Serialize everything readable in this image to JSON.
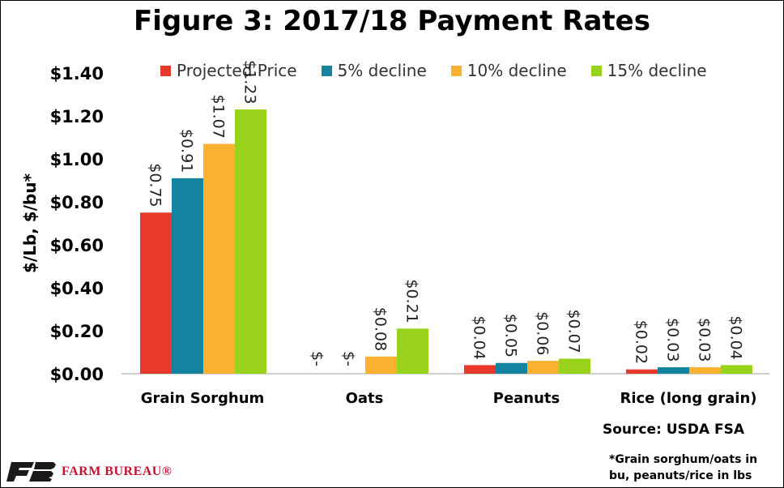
{
  "chart_data": {
    "type": "bar",
    "title": "Figure 3: 2017/18 Payment Rates",
    "ylabel": "$/Lb, $/bu*",
    "xlabel": "",
    "ylim": [
      0,
      1.4
    ],
    "yticks": [
      0,
      0.2,
      0.4,
      0.6,
      0.8,
      1.0,
      1.2,
      1.4
    ],
    "ytick_labels": [
      "$0.00",
      "$0.20",
      "$0.40",
      "$0.60",
      "$0.80",
      "$1.00",
      "$1.20",
      "$1.40"
    ],
    "categories": [
      "Grain Sorghum",
      "Oats",
      "Peanuts",
      "Rice (long grain)"
    ],
    "series": [
      {
        "name": "Projected Price",
        "color": "#e8392c",
        "values": [
          0.75,
          0,
          0.04,
          0.02
        ],
        "labels": [
          "$0.75",
          "$-",
          "$0.04",
          "$0.02"
        ]
      },
      {
        "name": "5% decline",
        "color": "#1483a0",
        "values": [
          0.91,
          0,
          0.05,
          0.03
        ],
        "labels": [
          "$0.91",
          "$-",
          "$0.05",
          "$0.03"
        ]
      },
      {
        "name": "10% decline",
        "color": "#fbb130",
        "values": [
          1.07,
          0.08,
          0.06,
          0.03
        ],
        "labels": [
          "$1.07",
          "$0.08",
          "$0.06",
          "$0.03"
        ]
      },
      {
        "name": "15% decline",
        "color": "#99d21a",
        "values": [
          1.23,
          0.21,
          0.07,
          0.04
        ],
        "labels": [
          "$1.23",
          "$0.21",
          "$0.07",
          "$0.04"
        ]
      }
    ],
    "legend_position": "top",
    "grid": false
  },
  "source": "Source: USDA FSA",
  "footnote": "*Grain sorghum/oats in bu, peanuts/rice in lbs",
  "logo": {
    "text": "FARM BUREAU®",
    "color": "#c8102e"
  }
}
